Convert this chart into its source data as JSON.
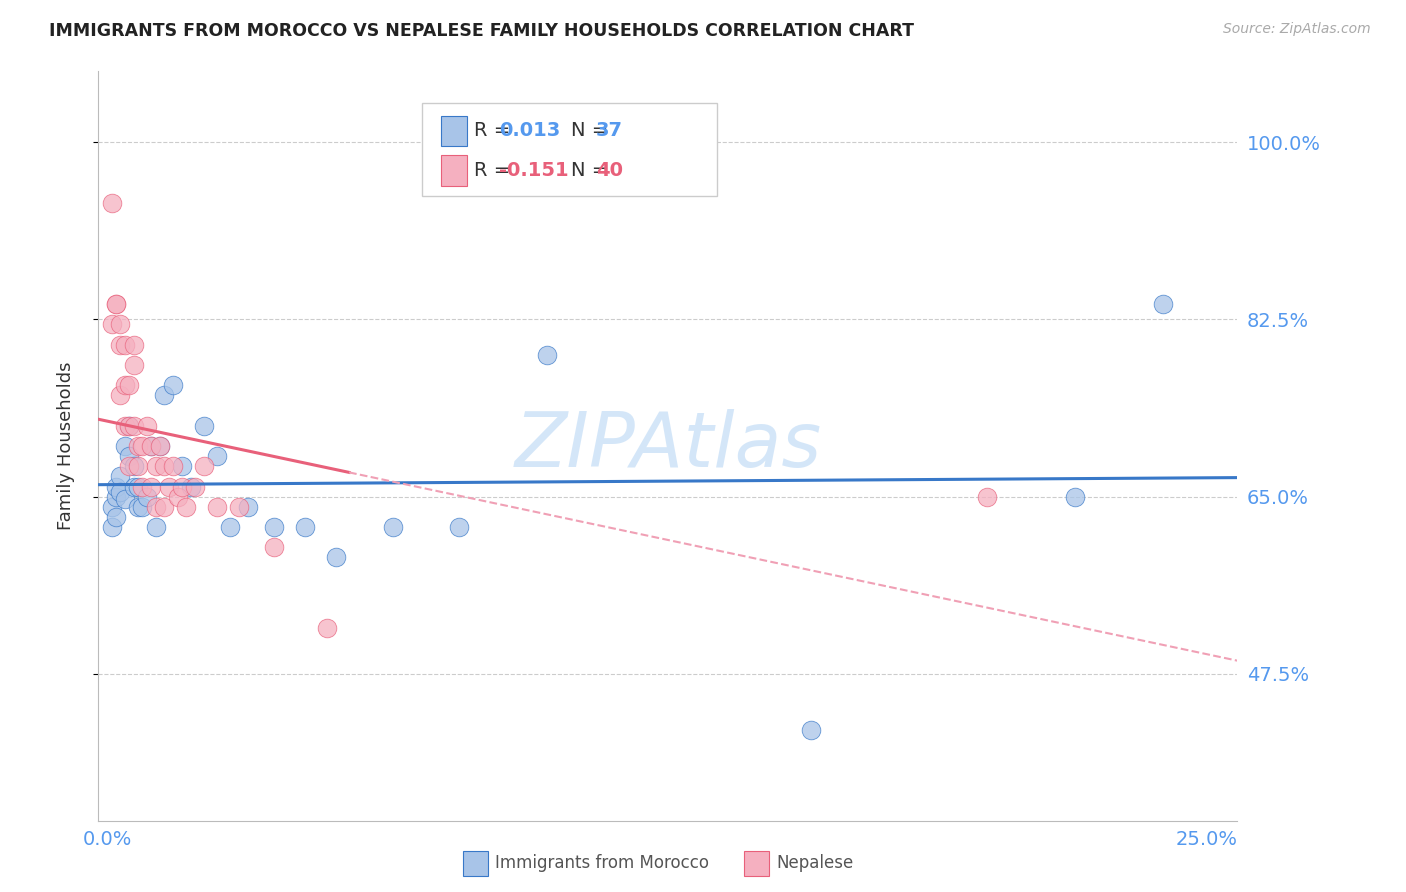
{
  "title": "IMMIGRANTS FROM MOROCCO VS NEPALESE FAMILY HOUSEHOLDS CORRELATION CHART",
  "source": "Source: ZipAtlas.com",
  "ylabel": "Family Households",
  "ytick_labels": [
    "100.0%",
    "82.5%",
    "65.0%",
    "47.5%"
  ],
  "ytick_values": [
    1.0,
    0.825,
    0.65,
    0.475
  ],
  "ylim": [
    0.33,
    1.07
  ],
  "xlim": [
    -0.002,
    0.257
  ],
  "blue_R": "0.013",
  "blue_N": "37",
  "pink_R": "-0.151",
  "pink_N": "40",
  "blue_color": "#a8c4e8",
  "pink_color": "#f5b0c0",
  "blue_line_color": "#3878c8",
  "pink_line_color": "#e8607a",
  "pink_dashed_color": "#f0a0b5",
  "grid_color": "#cccccc",
  "title_color": "#222222",
  "axis_label_color": "#5599ee",
  "watermark_color": "#d0e4f8",
  "blue_x": [
    0.001,
    0.001,
    0.002,
    0.002,
    0.002,
    0.003,
    0.003,
    0.004,
    0.004,
    0.005,
    0.005,
    0.006,
    0.006,
    0.007,
    0.007,
    0.008,
    0.009,
    0.01,
    0.011,
    0.012,
    0.013,
    0.015,
    0.017,
    0.019,
    0.022,
    0.025,
    0.028,
    0.032,
    0.038,
    0.045,
    0.052,
    0.065,
    0.08,
    0.1,
    0.16,
    0.22,
    0.24
  ],
  "blue_y": [
    0.64,
    0.62,
    0.65,
    0.63,
    0.66,
    0.67,
    0.655,
    0.648,
    0.7,
    0.72,
    0.69,
    0.68,
    0.66,
    0.64,
    0.66,
    0.64,
    0.65,
    0.7,
    0.62,
    0.7,
    0.75,
    0.76,
    0.68,
    0.66,
    0.72,
    0.69,
    0.62,
    0.64,
    0.62,
    0.62,
    0.59,
    0.62,
    0.62,
    0.79,
    0.42,
    0.65,
    0.84
  ],
  "pink_x": [
    0.001,
    0.001,
    0.002,
    0.002,
    0.003,
    0.003,
    0.003,
    0.004,
    0.004,
    0.004,
    0.005,
    0.005,
    0.005,
    0.006,
    0.006,
    0.006,
    0.007,
    0.007,
    0.008,
    0.008,
    0.009,
    0.01,
    0.01,
    0.011,
    0.011,
    0.012,
    0.013,
    0.013,
    0.014,
    0.015,
    0.016,
    0.017,
    0.018,
    0.02,
    0.022,
    0.025,
    0.03,
    0.038,
    0.05,
    0.2
  ],
  "pink_y": [
    0.94,
    0.82,
    0.84,
    0.84,
    0.8,
    0.82,
    0.75,
    0.8,
    0.76,
    0.72,
    0.76,
    0.72,
    0.68,
    0.8,
    0.78,
    0.72,
    0.7,
    0.68,
    0.7,
    0.66,
    0.72,
    0.7,
    0.66,
    0.68,
    0.64,
    0.7,
    0.68,
    0.64,
    0.66,
    0.68,
    0.65,
    0.66,
    0.64,
    0.66,
    0.68,
    0.64,
    0.64,
    0.6,
    0.52,
    0.65
  ]
}
